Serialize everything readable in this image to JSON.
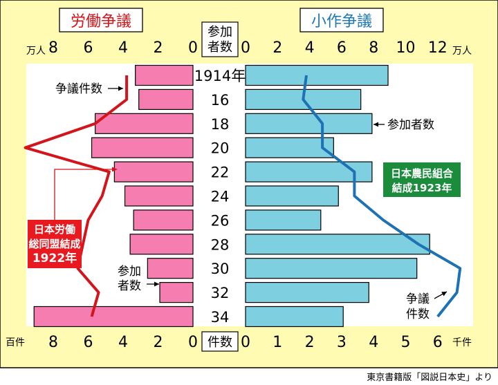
{
  "chart_data": {
    "type": "bar",
    "layout": "back-to-back",
    "left_panel": {
      "title": "労働争議",
      "bar_color": "#f57db0",
      "line_color": "#d4141b",
      "top_unit": "万人",
      "top_ticks": [
        "8",
        "6",
        "4",
        "2",
        "0"
      ],
      "bottom_unit": "百件",
      "bottom_ticks": [
        "8",
        "6",
        "4",
        "2",
        "0"
      ],
      "participants_10k": [
        3.3,
        3.1,
        5.6,
        5.8,
        4.5,
        3.9,
        3.4,
        3.6,
        2.6,
        1.9,
        9.1
      ],
      "disputes_100": [
        3.8,
        3.8,
        5.6,
        9.6,
        4.8,
        5.2,
        6.0,
        6.3,
        6.6,
        5.4,
        5.8
      ],
      "line_label": "争議件数",
      "bar_label": "参加\n者数",
      "event_label": "日本労働\n総同盟結成\n1922年"
    },
    "right_panel": {
      "title": "小作争議",
      "bar_color": "#7ecfe0",
      "line_color": "#1e72b4",
      "top_unit": "万人",
      "top_ticks": [
        "0",
        "2",
        "4",
        "6",
        "8",
        "10",
        "12"
      ],
      "bottom_unit": "千件",
      "bottom_ticks": [
        "0",
        "1",
        "2",
        "3",
        "4",
        "5",
        "6"
      ],
      "participants_10k": [
        8.9,
        7.2,
        7.9,
        5.5,
        7.9,
        5.8,
        4.7,
        11.5,
        10.7,
        7.7,
        6.1
      ],
      "disputes_1000": [
        1.9,
        1.8,
        2.4,
        2.4,
        3.4,
        3.4,
        4.3,
        5.4,
        6.7,
        6.6,
        6.0
      ],
      "bar_label": "参加者数",
      "line_label": "争議\n件数",
      "event_label": "日本農民組合\n結成1923年"
    },
    "categories": [
      "1914年",
      "16",
      "18",
      "20",
      "22",
      "24",
      "26",
      "28",
      "30",
      "32",
      "34"
    ],
    "center_top_label": "参加\n者数",
    "center_bottom_label": "件数",
    "source": "東京書籍版「図説日本史」より"
  },
  "colors": {
    "background": "#fffbb3",
    "plot": "#ffffff",
    "labor_title": "#d4141b",
    "tenancy_title": "#1e78b4",
    "labor_event_box": "#e8191f",
    "tenancy_event_box": "#1a8c3c"
  }
}
